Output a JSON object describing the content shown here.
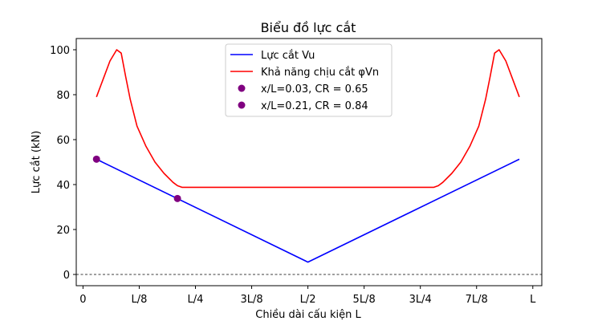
{
  "chart_data": {
    "type": "line",
    "title": "Biểu đồ lực cắt",
    "xlabel": "Chiều dài cấu kiện L",
    "ylabel": "Lực cắt (kN)",
    "xlim": [
      -0.015,
      1.02
    ],
    "ylim": [
      -5,
      105
    ],
    "x_ticks": [
      {
        "value": 0,
        "label": "0"
      },
      {
        "value": 0.125,
        "label": "L/8"
      },
      {
        "value": 0.25,
        "label": "L/4"
      },
      {
        "value": 0.375,
        "label": "3L/8"
      },
      {
        "value": 0.5,
        "label": "L/2"
      },
      {
        "value": 0.625,
        "label": "5L/8"
      },
      {
        "value": 0.75,
        "label": "3L/4"
      },
      {
        "value": 0.875,
        "label": "7L/8"
      },
      {
        "value": 1,
        "label": "L"
      }
    ],
    "y_ticks": [
      0,
      20,
      40,
      60,
      80,
      100
    ],
    "zero_line": true,
    "grid": false,
    "legend_position": "top-center",
    "series": [
      {
        "name": "Lực cắt Vu",
        "color": "#0000ff",
        "x": [
          0.03,
          0.5,
          0.97
        ],
        "y": [
          51.3,
          5.5,
          51.3
        ]
      },
      {
        "name": "Khả năng chịu cắt φVn",
        "color": "#ff0000",
        "x": [
          0.03,
          0.06,
          0.075,
          0.085,
          0.095,
          0.105,
          0.12,
          0.14,
          0.16,
          0.18,
          0.2,
          0.21,
          0.22,
          0.5,
          0.78,
          0.79,
          0.8,
          0.82,
          0.84,
          0.86,
          0.88,
          0.895,
          0.905,
          0.915,
          0.925,
          0.94,
          0.97
        ],
        "y": [
          79,
          95,
          100,
          98.5,
          88,
          78,
          66,
          57,
          50,
          45,
          41,
          39.5,
          38.8,
          38.8,
          38.8,
          39.5,
          41,
          45,
          50,
          57,
          66,
          78,
          88,
          98.5,
          100,
          95,
          79
        ]
      }
    ],
    "points": [
      {
        "name": "x/L=0.03, CR = 0.65",
        "color": "#800080",
        "x": 0.03,
        "y": 51.3
      },
      {
        "name": "x/L=0.21, CR = 0.84",
        "color": "#800080",
        "x": 0.21,
        "y": 33.8
      }
    ]
  }
}
